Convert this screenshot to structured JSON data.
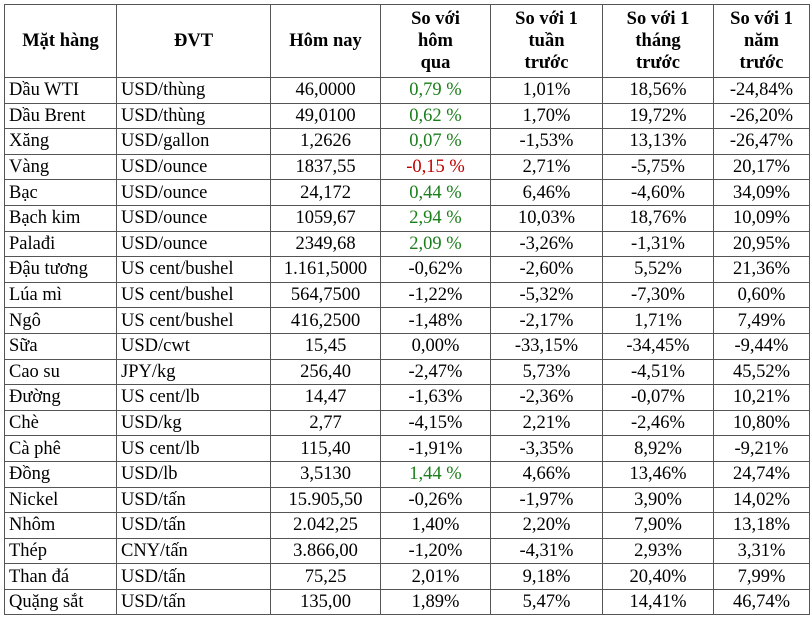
{
  "headers": [
    [
      "Mặt hàng"
    ],
    [
      "ĐVT"
    ],
    [
      "Hôm nay"
    ],
    [
      "So với",
      "hôm",
      "qua"
    ],
    [
      "So với 1",
      "tuần",
      "trước"
    ],
    [
      "So với 1",
      "tháng",
      "trước"
    ],
    [
      "So với 1",
      "năm",
      "trước"
    ]
  ],
  "colors": {
    "up": "#1a7f1a",
    "down": "#c00000",
    "default": "#000000"
  },
  "rows": [
    {
      "name": "Dầu WTI",
      "unit": "USD/thùng",
      "today": "46,0000",
      "d1": "0,79 %",
      "w1": "1,01%",
      "m1": "18,56%",
      "y1": "-24,84%",
      "d1_color": "up"
    },
    {
      "name": "Dầu Brent",
      "unit": "USD/thùng",
      "today": "49,0100",
      "d1": "0,62 %",
      "w1": "1,70%",
      "m1": "19,72%",
      "y1": "-26,20%",
      "d1_color": "up"
    },
    {
      "name": "Xăng",
      "unit": "USD/gallon",
      "today": "1,2626",
      "d1": "0,07 %",
      "w1": "-1,53%",
      "m1": "13,13%",
      "y1": "-26,47%",
      "d1_color": "up"
    },
    {
      "name": "Vàng",
      "unit": "USD/ounce",
      "today": "1837,55",
      "d1": "-0,15 %",
      "w1": "2,71%",
      "m1": "-5,75%",
      "y1": "20,17%",
      "d1_color": "down"
    },
    {
      "name": "Bạc",
      "unit": "USD/ounce",
      "today": "24,172",
      "d1": "0,44 %",
      "w1": "6,46%",
      "m1": "-4,60%",
      "y1": "34,09%",
      "d1_color": "up"
    },
    {
      "name": "Bạch kim",
      "unit": "USD/ounce",
      "today": "1059,67",
      "d1": "2,94 %",
      "w1": "10,03%",
      "m1": "18,76%",
      "y1": "10,09%",
      "d1_color": "up"
    },
    {
      "name": "Palađi",
      "unit": "USD/ounce",
      "today": "2349,68",
      "d1": "2,09 %",
      "w1": "-3,26%",
      "m1": "-1,31%",
      "y1": "20,95%",
      "d1_color": "up"
    },
    {
      "name": "Đậu tương",
      "unit": "US cent/bushel",
      "today": "1.161,5000",
      "d1": "-0,62%",
      "w1": "-2,60%",
      "m1": "5,52%",
      "y1": "21,36%",
      "d1_color": "default"
    },
    {
      "name": "Lúa mì",
      "unit": "US cent/bushel",
      "today": "564,7500",
      "d1": "-1,22%",
      "w1": "-5,32%",
      "m1": "-7,30%",
      "y1": "0,60%",
      "d1_color": "default"
    },
    {
      "name": "Ngô",
      "unit": "US cent/bushel",
      "today": "416,2500",
      "d1": "-1,48%",
      "w1": "-2,17%",
      "m1": "1,71%",
      "y1": "7,49%",
      "d1_color": "default"
    },
    {
      "name": "Sữa",
      "unit": "USD/cwt",
      "today": "15,45",
      "d1": "0,00%",
      "w1": "-33,15%",
      "m1": "-34,45%",
      "y1": "-9,44%",
      "d1_color": "default"
    },
    {
      "name": "Cao su",
      "unit": "JPY/kg",
      "today": "256,40",
      "d1": "-2,47%",
      "w1": "5,73%",
      "m1": "-4,51%",
      "y1": "45,52%",
      "d1_color": "default"
    },
    {
      "name": "Đường",
      "unit": "US cent/lb",
      "today": "14,47",
      "d1": "-1,63%",
      "w1": "-2,36%",
      "m1": "-0,07%",
      "y1": "10,21%",
      "d1_color": "default"
    },
    {
      "name": "Chè",
      "unit": "USD/kg",
      "today": "2,77",
      "d1": "-4,15%",
      "w1": "2,21%",
      "m1": "-2,46%",
      "y1": "10,80%",
      "d1_color": "default"
    },
    {
      "name": "Cà phê",
      "unit": "US cent/lb",
      "today": "115,40",
      "d1": "-1,91%",
      "w1": "-3,35%",
      "m1": "8,92%",
      "y1": "-9,21%",
      "d1_color": "default"
    },
    {
      "name": "Đồng",
      "unit": "USD/lb",
      "today": "3,5130",
      "d1": "1,44 %",
      "w1": "4,66%",
      "m1": "13,46%",
      "y1": "24,74%",
      "d1_color": "up"
    },
    {
      "name": "Nickel",
      "unit": "USD/tấn",
      "today": "15.905,50",
      "d1": "-0,26%",
      "w1": "-1,97%",
      "m1": "3,90%",
      "y1": "14,02%",
      "d1_color": "default"
    },
    {
      "name": "Nhôm",
      "unit": "USD/tấn",
      "today": "2.042,25",
      "d1": "1,40%",
      "w1": "2,20%",
      "m1": "7,90%",
      "y1": "13,18%",
      "d1_color": "default"
    },
    {
      "name": "Thép",
      "unit": "CNY/tấn",
      "today": "3.866,00",
      "d1": "-1,20%",
      "w1": "-4,31%",
      "m1": "2,93%",
      "y1": "3,31%",
      "d1_color": "default"
    },
    {
      "name": "Than đá",
      "unit": "USD/tấn",
      "today": "75,25",
      "d1": "2,01%",
      "w1": "9,18%",
      "m1": "20,40%",
      "y1": "7,99%",
      "d1_color": "default"
    },
    {
      "name": "Quặng sắt",
      "unit": "USD/tấn",
      "today": "135,00",
      "d1": "1,89%",
      "w1": "5,47%",
      "m1": "14,41%",
      "y1": "46,74%",
      "d1_color": "default"
    }
  ]
}
